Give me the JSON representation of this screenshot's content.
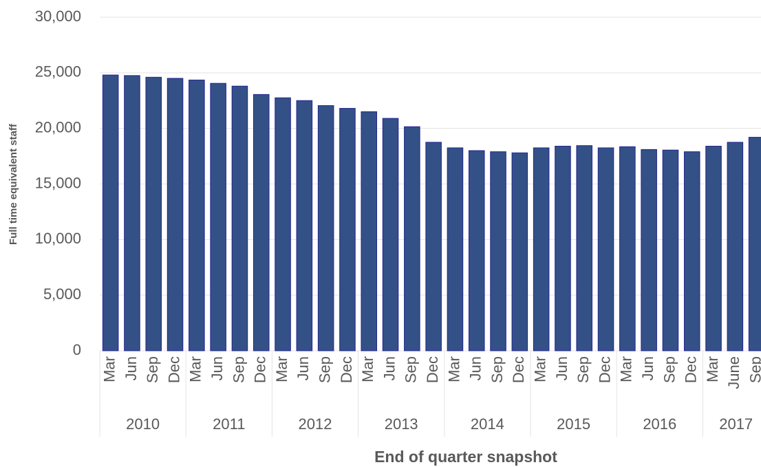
{
  "chart_data": {
    "type": "bar",
    "y_label": "Full time equivalent staff",
    "x_label": "End of quarter snapshot",
    "groups": [
      {
        "label": "2010",
        "categories": [
          "Mar",
          "Jun",
          "Sep",
          "Dec"
        ]
      },
      {
        "label": "2011",
        "categories": [
          "Mar",
          "Jun",
          "Sep",
          "Dec"
        ]
      },
      {
        "label": "2012",
        "categories": [
          "Mar",
          "Jun",
          "Sep",
          "Dec"
        ]
      },
      {
        "label": "2013",
        "categories": [
          "Mar",
          "Jun",
          "Sep",
          "Dec"
        ]
      },
      {
        "label": "2014",
        "categories": [
          "Mar",
          "Jun",
          "Sep",
          "Dec"
        ]
      },
      {
        "label": "2015",
        "categories": [
          "Mar",
          "Jun",
          "Sep",
          "Dec"
        ]
      },
      {
        "label": "2016",
        "categories": [
          "Mar",
          "Jun",
          "Sep",
          "Dec"
        ]
      },
      {
        "label": "2017",
        "categories": [
          "Mar",
          "June",
          "Sep"
        ]
      }
    ],
    "values": [
      24800,
      24750,
      24600,
      24500,
      24350,
      24050,
      23800,
      23050,
      22750,
      22500,
      22050,
      21800,
      21500,
      20900,
      20150,
      18750,
      18250,
      18000,
      17900,
      17800,
      18250,
      18400,
      18450,
      18250,
      18350,
      18100,
      18050,
      17900,
      18400,
      18750,
      19200
    ],
    "color": "#345187",
    "ylim": [
      0,
      30000
    ],
    "yticks": [
      0,
      {
        "value": 5000,
        "label": "5,000"
      },
      {
        "value": 10000,
        "label": "10,000"
      },
      {
        "value": 15000,
        "label": "15,000"
      },
      {
        "value": 20000,
        "label": "20,000"
      },
      {
        "value": 25000,
        "label": "25,000"
      },
      {
        "value": 30000,
        "label": "30,000"
      }
    ],
    "grid": true
  }
}
